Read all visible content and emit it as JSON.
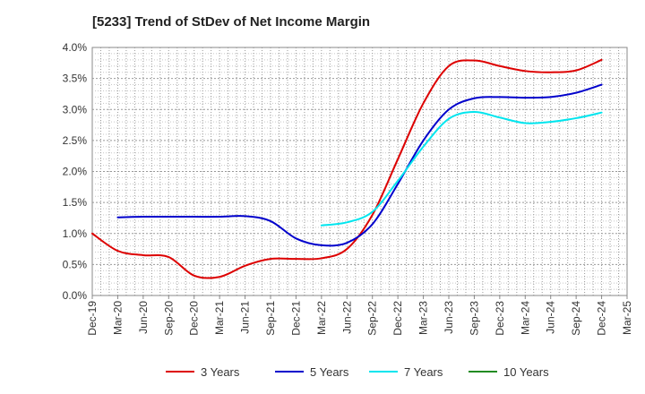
{
  "chart_data": {
    "type": "line",
    "title": "[5233]  Trend of StDev of Net Income Margin",
    "xlabel": "",
    "ylabel": "",
    "ylim": [
      0,
      4.0
    ],
    "y_ticks": [
      "0.0%",
      "0.5%",
      "1.0%",
      "1.5%",
      "2.0%",
      "2.5%",
      "3.0%",
      "3.5%",
      "4.0%"
    ],
    "x_ticks": [
      "Dec-19",
      "Mar-20",
      "Jun-20",
      "Sep-20",
      "Dec-20",
      "Mar-21",
      "Jun-21",
      "Sep-21",
      "Dec-21",
      "Mar-22",
      "Jun-22",
      "Sep-22",
      "Dec-22",
      "Mar-23",
      "Jun-23",
      "Sep-23",
      "Dec-23",
      "Mar-24",
      "Jun-24",
      "Sep-24",
      "Dec-24",
      "Mar-25"
    ],
    "grid": true,
    "legend_position": "bottom",
    "series": [
      {
        "name": "3 Years",
        "color": "#dd0000",
        "points": [
          [
            "Dec-19",
            1.0
          ],
          [
            "Mar-20",
            0.72
          ],
          [
            "Jun-20",
            0.65
          ],
          [
            "Sep-20",
            0.62
          ],
          [
            "Dec-20",
            0.32
          ],
          [
            "Mar-21",
            0.3
          ],
          [
            "Jun-21",
            0.48
          ],
          [
            "Sep-21",
            0.59
          ],
          [
            "Dec-21",
            0.59
          ],
          [
            "Mar-22",
            0.6
          ],
          [
            "Jun-22",
            0.75
          ],
          [
            "Sep-22",
            1.3
          ],
          [
            "Dec-22",
            2.2
          ],
          [
            "Mar-23",
            3.1
          ],
          [
            "Jun-23",
            3.7
          ],
          [
            "Sep-23",
            3.79
          ],
          [
            "Dec-23",
            3.7
          ],
          [
            "Mar-24",
            3.62
          ],
          [
            "Jun-24",
            3.6
          ],
          [
            "Sep-24",
            3.63
          ],
          [
            "Dec-24",
            3.8
          ]
        ]
      },
      {
        "name": "5 Years",
        "color": "#0000cc",
        "points": [
          [
            "Mar-20",
            1.26
          ],
          [
            "Jun-20",
            1.27
          ],
          [
            "Sep-20",
            1.27
          ],
          [
            "Dec-20",
            1.27
          ],
          [
            "Mar-21",
            1.27
          ],
          [
            "Jun-21",
            1.28
          ],
          [
            "Sep-21",
            1.2
          ],
          [
            "Dec-21",
            0.92
          ],
          [
            "Mar-22",
            0.81
          ],
          [
            "Jun-22",
            0.85
          ],
          [
            "Sep-22",
            1.15
          ],
          [
            "Dec-22",
            1.8
          ],
          [
            "Mar-23",
            2.5
          ],
          [
            "Jun-23",
            3.0
          ],
          [
            "Sep-23",
            3.18
          ],
          [
            "Dec-23",
            3.2
          ],
          [
            "Mar-24",
            3.19
          ],
          [
            "Jun-24",
            3.2
          ],
          [
            "Sep-24",
            3.27
          ],
          [
            "Dec-24",
            3.4
          ]
        ]
      },
      {
        "name": "7 Years",
        "color": "#00e5ee",
        "points": [
          [
            "Mar-22",
            1.13
          ],
          [
            "Jun-22",
            1.18
          ],
          [
            "Sep-22",
            1.35
          ],
          [
            "Dec-22",
            1.85
          ],
          [
            "Mar-23",
            2.4
          ],
          [
            "Jun-23",
            2.85
          ],
          [
            "Sep-23",
            2.96
          ],
          [
            "Dec-23",
            2.87
          ],
          [
            "Mar-24",
            2.78
          ],
          [
            "Jun-24",
            2.8
          ],
          [
            "Sep-24",
            2.86
          ],
          [
            "Dec-24",
            2.95
          ]
        ]
      },
      {
        "name": "10 Years",
        "color": "#228b22",
        "points": []
      }
    ]
  }
}
